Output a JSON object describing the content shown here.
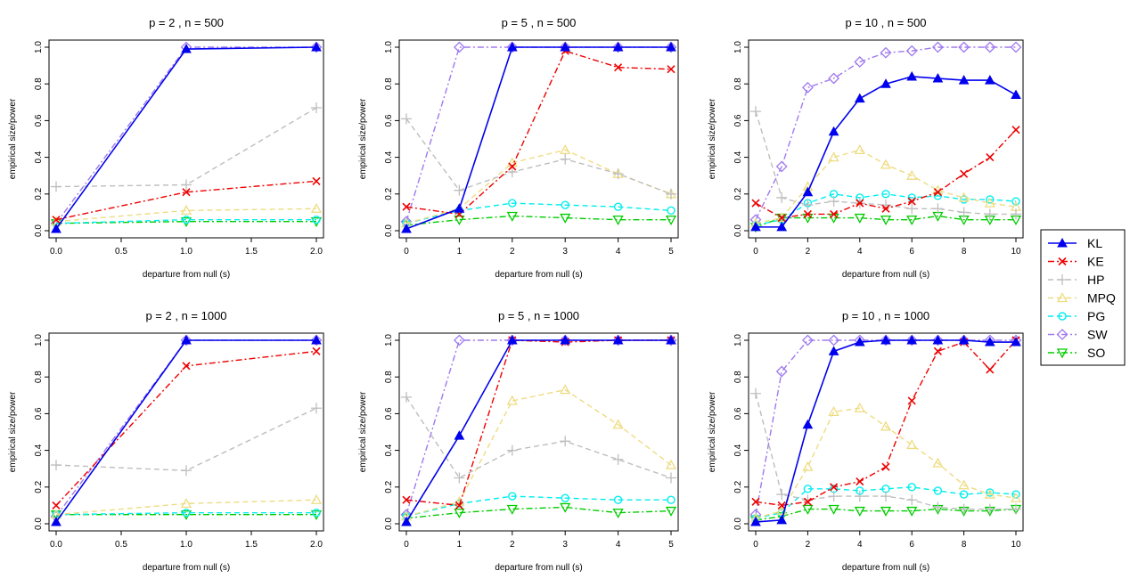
{
  "chart_data": {
    "type": "line",
    "series_styles": [
      {
        "name": "KL",
        "color": "#0000ee",
        "dash": "solid",
        "marker": "triangle-filled"
      },
      {
        "name": "KE",
        "color": "#ee0000",
        "dash": "dashdot",
        "marker": "x"
      },
      {
        "name": "HP",
        "color": "#bebebe",
        "dash": "dashed",
        "marker": "plus"
      },
      {
        "name": "MPQ",
        "color": "#eedc82",
        "dash": "dashed",
        "marker": "triangle-open"
      },
      {
        "name": "PG",
        "color": "#00eeee",
        "dash": "dashed",
        "marker": "circle-open"
      },
      {
        "name": "SW",
        "color": "#9f79ee",
        "dash": "dashdot",
        "marker": "diamond-open"
      },
      {
        "name": "SO",
        "color": "#00cd00",
        "dash": "dashdot",
        "marker": "triangle-down-open"
      }
    ],
    "legend": {
      "placement": "right",
      "entries": [
        "KL",
        "KE",
        "HP",
        "MPQ",
        "PG",
        "SW",
        "SO"
      ]
    },
    "panels": [
      {
        "title": "p = 2 , n = 500",
        "xlabel": "departure from null (s)",
        "ylabel": "empirical size/power",
        "xlim": [
          0,
          2
        ],
        "ylim": [
          0,
          1
        ],
        "xticks": [
          0,
          0.5,
          1,
          1.5,
          2
        ],
        "xtick_labels": [
          "0.0",
          "0.5",
          "1.0",
          "1.5",
          "2.0"
        ],
        "yticks": [
          0,
          0.2,
          0.4,
          0.6,
          0.8,
          1.0
        ],
        "ytick_labels": [
          "0.0",
          "0.2",
          "0.4",
          "0.6",
          "0.8",
          "1.0"
        ],
        "x": [
          0,
          1,
          2
        ],
        "series": [
          {
            "name": "KL",
            "values": [
              0.01,
              0.99,
              1.0
            ]
          },
          {
            "name": "KE",
            "values": [
              0.06,
              0.21,
              0.27
            ]
          },
          {
            "name": "HP",
            "values": [
              0.24,
              0.25,
              0.67
            ]
          },
          {
            "name": "MPQ",
            "values": [
              0.05,
              0.11,
              0.12
            ]
          },
          {
            "name": "PG",
            "values": [
              0.04,
              0.06,
              0.06
            ]
          },
          {
            "name": "SW",
            "values": [
              0.04,
              1.0,
              1.0
            ]
          },
          {
            "name": "SO",
            "values": [
              0.04,
              0.05,
              0.05
            ]
          }
        ]
      },
      {
        "title": "p = 5 , n = 500",
        "xlabel": "departure from null (s)",
        "ylabel": "empirical size/power",
        "xlim": [
          0,
          5
        ],
        "ylim": [
          0,
          1
        ],
        "xticks": [
          0,
          1,
          2,
          3,
          4,
          5
        ],
        "xtick_labels": [
          "0",
          "1",
          "2",
          "3",
          "4",
          "5"
        ],
        "yticks": [
          0,
          0.2,
          0.4,
          0.6,
          0.8,
          1.0
        ],
        "ytick_labels": [
          "0.0",
          "0.2",
          "0.4",
          "0.6",
          "0.8",
          "1.0"
        ],
        "x": [
          0,
          1,
          2,
          3,
          4,
          5
        ],
        "series": [
          {
            "name": "KL",
            "values": [
              0.01,
              0.12,
              1.0,
              1.0,
              1.0,
              1.0
            ]
          },
          {
            "name": "KE",
            "values": [
              0.13,
              0.09,
              0.35,
              0.98,
              0.89,
              0.88
            ]
          },
          {
            "name": "HP",
            "values": [
              0.61,
              0.22,
              0.32,
              0.39,
              0.31,
              0.2
            ]
          },
          {
            "name": "MPQ",
            "values": [
              0.04,
              0.12,
              0.37,
              0.44,
              0.31,
              0.2
            ]
          },
          {
            "name": "PG",
            "values": [
              0.04,
              0.11,
              0.15,
              0.14,
              0.13,
              0.11
            ]
          },
          {
            "name": "SW",
            "values": [
              0.05,
              1.0,
              1.0,
              1.0,
              1.0,
              1.0
            ]
          },
          {
            "name": "SO",
            "values": [
              0.03,
              0.06,
              0.08,
              0.07,
              0.06,
              0.06
            ]
          }
        ]
      },
      {
        "title": "p = 10 , n = 500",
        "xlabel": "departure from null (s)",
        "ylabel": "empirical size/power",
        "xlim": [
          0,
          10
        ],
        "ylim": [
          0,
          1
        ],
        "xticks": [
          0,
          2,
          4,
          6,
          8,
          10
        ],
        "xtick_labels": [
          "0",
          "2",
          "4",
          "6",
          "8",
          "10"
        ],
        "yticks": [
          0,
          0.2,
          0.4,
          0.6,
          0.8,
          1.0
        ],
        "ytick_labels": [
          "0.0",
          "0.2",
          "0.4",
          "0.6",
          "0.8",
          "1.0"
        ],
        "x": [
          0,
          1,
          2,
          3,
          4,
          5,
          6,
          7,
          8,
          9,
          10
        ],
        "series": [
          {
            "name": "KL",
            "values": [
              0.02,
              0.02,
              0.21,
              0.54,
              0.72,
              0.8,
              0.84,
              0.83,
              0.82,
              0.82,
              0.74
            ]
          },
          {
            "name": "KE",
            "values": [
              0.15,
              0.07,
              0.09,
              0.09,
              0.15,
              0.12,
              0.16,
              0.21,
              0.31,
              0.4,
              0.55
            ]
          },
          {
            "name": "HP",
            "values": [
              0.65,
              0.18,
              0.14,
              0.16,
              0.15,
              0.14,
              0.12,
              0.12,
              0.1,
              0.09,
              0.09
            ]
          },
          {
            "name": "MPQ",
            "values": [
              0.04,
              0.07,
              0.24,
              0.4,
              0.44,
              0.36,
              0.3,
              0.22,
              0.18,
              0.15,
              0.13
            ]
          },
          {
            "name": "PG",
            "values": [
              0.03,
              0.06,
              0.15,
              0.2,
              0.18,
              0.2,
              0.18,
              0.19,
              0.17,
              0.17,
              0.16
            ]
          },
          {
            "name": "SW",
            "values": [
              0.06,
              0.35,
              0.78,
              0.83,
              0.92,
              0.97,
              0.98,
              1.0,
              1.0,
              1.0,
              1.0
            ]
          },
          {
            "name": "SO",
            "values": [
              0.02,
              0.07,
              0.07,
              0.07,
              0.07,
              0.06,
              0.06,
              0.08,
              0.06,
              0.06,
              0.06
            ]
          }
        ]
      },
      {
        "title": "p = 2 , n = 1000",
        "xlabel": "departure from null (s)",
        "ylabel": "empirical size/power",
        "xlim": [
          0,
          2
        ],
        "ylim": [
          0,
          1
        ],
        "xticks": [
          0,
          0.5,
          1,
          1.5,
          2
        ],
        "xtick_labels": [
          "0.0",
          "0.5",
          "1.0",
          "1.5",
          "2.0"
        ],
        "yticks": [
          0,
          0.2,
          0.4,
          0.6,
          0.8,
          1.0
        ],
        "ytick_labels": [
          "0.0",
          "0.2",
          "0.4",
          "0.6",
          "0.8",
          "1.0"
        ],
        "x": [
          0,
          1,
          2
        ],
        "series": [
          {
            "name": "KL",
            "values": [
              0.01,
              1.0,
              1.0
            ]
          },
          {
            "name": "KE",
            "values": [
              0.1,
              0.86,
              0.94
            ]
          },
          {
            "name": "HP",
            "values": [
              0.32,
              0.29,
              0.63
            ]
          },
          {
            "name": "MPQ",
            "values": [
              0.05,
              0.11,
              0.13
            ]
          },
          {
            "name": "PG",
            "values": [
              0.05,
              0.06,
              0.06
            ]
          },
          {
            "name": "SW",
            "values": [
              0.04,
              1.0,
              1.0
            ]
          },
          {
            "name": "SO",
            "values": [
              0.05,
              0.05,
              0.05
            ]
          }
        ]
      },
      {
        "title": "p = 5 , n = 1000",
        "xlabel": "departure from null (s)",
        "ylabel": "empirical size/power",
        "xlim": [
          0,
          5
        ],
        "ylim": [
          0,
          1
        ],
        "xticks": [
          0,
          1,
          2,
          3,
          4,
          5
        ],
        "xtick_labels": [
          "0",
          "1",
          "2",
          "3",
          "4",
          "5"
        ],
        "yticks": [
          0,
          0.2,
          0.4,
          0.6,
          0.8,
          1.0
        ],
        "ytick_labels": [
          "0.0",
          "0.2",
          "0.4",
          "0.6",
          "0.8",
          "1.0"
        ],
        "x": [
          0,
          1,
          2,
          3,
          4,
          5
        ],
        "series": [
          {
            "name": "KL",
            "values": [
              0.01,
              0.48,
              1.0,
              1.0,
              1.0,
              1.0
            ]
          },
          {
            "name": "KE",
            "values": [
              0.13,
              0.1,
              1.0,
              0.99,
              1.0,
              1.0
            ]
          },
          {
            "name": "HP",
            "values": [
              0.69,
              0.25,
              0.4,
              0.45,
              0.35,
              0.25
            ]
          },
          {
            "name": "MPQ",
            "values": [
              0.04,
              0.12,
              0.67,
              0.73,
              0.54,
              0.32
            ]
          },
          {
            "name": "PG",
            "values": [
              0.04,
              0.11,
              0.15,
              0.14,
              0.13,
              0.13
            ]
          },
          {
            "name": "SW",
            "values": [
              0.05,
              1.0,
              1.0,
              1.0,
              1.0,
              1.0
            ]
          },
          {
            "name": "SO",
            "values": [
              0.03,
              0.06,
              0.08,
              0.09,
              0.06,
              0.07
            ]
          }
        ]
      },
      {
        "title": "p = 10 , n = 1000",
        "xlabel": "departure from null (s)",
        "ylabel": "empirical size/power",
        "xlim": [
          0,
          10
        ],
        "ylim": [
          0,
          1
        ],
        "xticks": [
          0,
          2,
          4,
          6,
          8,
          10
        ],
        "xtick_labels": [
          "0",
          "2",
          "4",
          "6",
          "8",
          "10"
        ],
        "yticks": [
          0,
          0.2,
          0.4,
          0.6,
          0.8,
          1.0
        ],
        "ytick_labels": [
          "0.0",
          "0.2",
          "0.4",
          "0.6",
          "0.8",
          "1.0"
        ],
        "x": [
          0,
          1,
          2,
          3,
          4,
          5,
          6,
          7,
          8,
          9,
          10
        ],
        "series": [
          {
            "name": "KL",
            "values": [
              0.01,
              0.02,
              0.54,
              0.94,
              0.99,
              1.0,
              1.0,
              1.0,
              1.0,
              0.99,
              0.99
            ]
          },
          {
            "name": "KE",
            "values": [
              0.12,
              0.1,
              0.12,
              0.2,
              0.23,
              0.31,
              0.67,
              0.94,
              0.99,
              0.84,
              1.0
            ]
          },
          {
            "name": "HP",
            "values": [
              0.71,
              0.16,
              0.13,
              0.15,
              0.15,
              0.15,
              0.13,
              0.09,
              0.08,
              0.08,
              0.08
            ]
          },
          {
            "name": "MPQ",
            "values": [
              0.03,
              0.07,
              0.31,
              0.61,
              0.63,
              0.53,
              0.43,
              0.33,
              0.21,
              0.16,
              0.14
            ]
          },
          {
            "name": "PG",
            "values": [
              0.03,
              0.06,
              0.19,
              0.19,
              0.18,
              0.19,
              0.2,
              0.18,
              0.16,
              0.17,
              0.16
            ]
          },
          {
            "name": "SW",
            "values": [
              0.05,
              0.83,
              1.0,
              1.0,
              1.0,
              1.0,
              1.0,
              1.0,
              1.0,
              1.0,
              1.0
            ]
          },
          {
            "name": "SO",
            "values": [
              0.02,
              0.04,
              0.08,
              0.08,
              0.07,
              0.07,
              0.07,
              0.08,
              0.07,
              0.07,
              0.08
            ]
          }
        ]
      }
    ]
  }
}
